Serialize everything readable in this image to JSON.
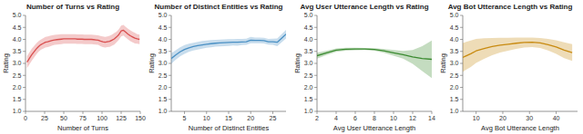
{
  "chart_data": [
    {
      "type": "line",
      "title": "Number of Turns vs Rating",
      "xlabel": "Number of Turns",
      "ylabel": "Rating",
      "color": "#d94f4f",
      "xlim": [
        0,
        150
      ],
      "ylim": [
        1.0,
        5.0
      ],
      "xticks": [
        0,
        25,
        50,
        75,
        100,
        125,
        150
      ],
      "yticks": [
        {
          "value": 1.0,
          "label": "1.0"
        },
        1.5,
        {
          "value": 2.0,
          "label": "2.0"
        },
        2.5,
        {
          "value": 3.0,
          "label": "3.0"
        },
        3.5,
        {
          "value": 4.0,
          "label": "4.0"
        },
        4.5,
        {
          "value": 5.0,
          "label": "5.0"
        }
      ],
      "x": [
        2,
        5,
        8,
        11,
        14,
        17,
        20,
        23,
        26,
        29,
        32,
        35,
        38,
        41,
        44,
        47,
        50,
        53,
        56,
        59,
        62,
        65,
        68,
        71,
        74,
        77,
        80,
        83,
        86,
        89,
        92,
        95,
        98,
        101,
        104,
        107,
        110,
        113,
        116,
        119,
        122,
        125,
        128,
        131,
        134,
        137,
        140,
        143,
        146,
        149
      ],
      "values": [
        3.05,
        3.2,
        3.35,
        3.48,
        3.6,
        3.7,
        3.78,
        3.83,
        3.88,
        3.9,
        3.93,
        3.96,
        3.98,
        3.99,
        4.0,
        4.01,
        4.02,
        4.02,
        4.02,
        4.02,
        4.02,
        4.02,
        4.01,
        4.01,
        4.01,
        4.0,
        4.0,
        4.0,
        4.0,
        3.99,
        3.98,
        3.97,
        3.93,
        3.9,
        3.88,
        3.9,
        3.92,
        3.97,
        4.02,
        4.1,
        4.2,
        4.35,
        4.38,
        4.3,
        4.22,
        4.15,
        4.1,
        4.05,
        4.02,
        4.0
      ],
      "upper": [
        3.3,
        3.45,
        3.6,
        3.72,
        3.83,
        3.92,
        3.99,
        4.05,
        4.1,
        4.12,
        4.15,
        4.17,
        4.19,
        4.2,
        4.21,
        4.22,
        4.22,
        4.22,
        4.22,
        4.22,
        4.22,
        4.22,
        4.21,
        4.21,
        4.21,
        4.2,
        4.2,
        4.2,
        4.2,
        4.19,
        4.18,
        4.17,
        4.14,
        4.12,
        4.1,
        4.12,
        4.15,
        4.2,
        4.26,
        4.32,
        4.42,
        4.58,
        4.6,
        4.52,
        4.44,
        4.38,
        4.32,
        4.27,
        4.22,
        4.2
      ],
      "lower": [
        2.8,
        2.95,
        3.1,
        3.24,
        3.37,
        3.48,
        3.57,
        3.61,
        3.66,
        3.68,
        3.71,
        3.75,
        3.77,
        3.78,
        3.79,
        3.8,
        3.82,
        3.82,
        3.82,
        3.82,
        3.82,
        3.82,
        3.81,
        3.81,
        3.81,
        3.8,
        3.8,
        3.8,
        3.8,
        3.79,
        3.78,
        3.77,
        3.72,
        3.68,
        3.66,
        3.68,
        3.69,
        3.74,
        3.78,
        3.88,
        3.98,
        4.12,
        4.16,
        4.08,
        4.0,
        3.92,
        3.88,
        3.83,
        3.82,
        3.8
      ]
    },
    {
      "type": "line",
      "title": "Number of Distinct Entities vs Rating",
      "xlabel": "Number of Distinct Entities",
      "ylabel": "Rating",
      "color": "#4a90c4",
      "xlim": [
        2,
        28
      ],
      "ylim": [
        1.0,
        5.0
      ],
      "xticks": [
        5,
        10,
        15,
        20,
        25
      ],
      "yticks": [
        {
          "value": 1.0,
          "label": "1.0"
        },
        1.5,
        {
          "value": 2.0,
          "label": "2.0"
        },
        2.5,
        {
          "value": 3.0,
          "label": "3.0"
        },
        3.5,
        {
          "value": 4.0,
          "label": "4.0"
        },
        4.5,
        {
          "value": 5.0,
          "label": "5.0"
        }
      ],
      "x": [
        2,
        3,
        4,
        5,
        6,
        7,
        8,
        9,
        10,
        11,
        12,
        13,
        14,
        15,
        16,
        17,
        18,
        19,
        20,
        21,
        22,
        23,
        24,
        25,
        26,
        27,
        28
      ],
      "values": [
        3.2,
        3.35,
        3.48,
        3.58,
        3.65,
        3.7,
        3.74,
        3.77,
        3.8,
        3.82,
        3.84,
        3.85,
        3.86,
        3.87,
        3.88,
        3.88,
        3.89,
        3.9,
        3.97,
        3.96,
        3.96,
        3.95,
        3.9,
        3.9,
        3.88,
        4.05,
        4.22
      ],
      "upper": [
        3.42,
        3.55,
        3.67,
        3.76,
        3.82,
        3.86,
        3.9,
        3.93,
        3.95,
        3.97,
        3.98,
        3.99,
        4.0,
        4.01,
        4.01,
        4.02,
        4.02,
        4.03,
        4.1,
        4.08,
        4.08,
        4.07,
        4.02,
        4.03,
        4.04,
        4.22,
        4.4
      ],
      "lower": [
        2.98,
        3.15,
        3.29,
        3.4,
        3.48,
        3.54,
        3.58,
        3.61,
        3.65,
        3.67,
        3.7,
        3.71,
        3.72,
        3.73,
        3.75,
        3.74,
        3.76,
        3.77,
        3.84,
        3.84,
        3.84,
        3.83,
        3.78,
        3.77,
        3.72,
        3.88,
        4.04
      ]
    },
    {
      "type": "line",
      "title": "Avg User Utterance Length vs Rating",
      "xlabel": "Avg User Utterance Length",
      "ylabel": "Rating",
      "color": "#3a8a30",
      "xlim": [
        2,
        14
      ],
      "ylim": [
        1.0,
        5.0
      ],
      "xticks": [
        2,
        4,
        6,
        8,
        10,
        12,
        14
      ],
      "yticks": [
        {
          "value": 1.0,
          "label": "1.0"
        },
        1.5,
        {
          "value": 2.0,
          "label": "2.0"
        },
        2.5,
        {
          "value": 3.0,
          "label": "3.0"
        },
        3.5,
        {
          "value": 4.0,
          "label": "4.0"
        },
        4.5,
        {
          "value": 5.0,
          "label": "5.0"
        }
      ],
      "x": [
        2,
        3,
        4,
        5,
        6,
        7,
        8,
        9,
        10,
        11,
        12,
        13,
        14
      ],
      "values": [
        3.32,
        3.44,
        3.55,
        3.59,
        3.6,
        3.6,
        3.58,
        3.52,
        3.44,
        3.36,
        3.27,
        3.2,
        3.17
      ],
      "upper": [
        3.44,
        3.53,
        3.62,
        3.65,
        3.65,
        3.64,
        3.63,
        3.6,
        3.56,
        3.52,
        3.56,
        3.72,
        3.95
      ],
      "lower": [
        3.2,
        3.35,
        3.48,
        3.53,
        3.55,
        3.56,
        3.53,
        3.44,
        3.32,
        3.2,
        2.98,
        2.68,
        2.39
      ]
    },
    {
      "type": "line",
      "title": "Avg Bot Utterance Length vs Rating",
      "xlabel": "Avg Bot Utterance Length",
      "ylabel": "Rating",
      "color": "#c88a10",
      "xlim": [
        5,
        48
      ],
      "ylim": [
        1.0,
        5.0
      ],
      "xticks": [
        10,
        20,
        30,
        40
      ],
      "yticks": [
        {
          "value": 1.0,
          "label": "1.0"
        },
        1.5,
        {
          "value": 2.0,
          "label": "2.0"
        },
        2.5,
        {
          "value": 3.0,
          "label": "3.0"
        },
        3.5,
        {
          "value": 4.0,
          "label": "4.0"
        },
        4.5,
        {
          "value": 5.0,
          "label": "5.0"
        }
      ],
      "x": [
        5,
        8,
        10,
        13,
        16,
        19,
        22,
        25,
        28,
        31,
        34,
        37,
        40,
        43,
        46
      ],
      "values": [
        3.25,
        3.4,
        3.52,
        3.62,
        3.7,
        3.76,
        3.8,
        3.84,
        3.87,
        3.88,
        3.85,
        3.78,
        3.68,
        3.55,
        3.45
      ],
      "upper": [
        3.85,
        3.95,
        4.02,
        4.05,
        4.06,
        4.07,
        4.07,
        4.08,
        4.08,
        4.08,
        4.06,
        4.02,
        3.96,
        3.88,
        3.8
      ],
      "lower": [
        2.65,
        2.85,
        3.02,
        3.19,
        3.34,
        3.45,
        3.53,
        3.6,
        3.66,
        3.68,
        3.64,
        3.54,
        3.4,
        3.22,
        3.1
      ]
    }
  ]
}
